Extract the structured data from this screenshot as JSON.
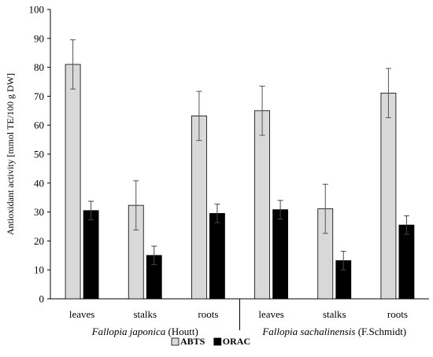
{
  "chart_data": {
    "type": "bar",
    "categories": [
      "leaves",
      "stalks",
      "roots",
      "leaves",
      "stalks",
      "roots"
    ],
    "groups": [
      {
        "name_italic": "Fallopia japonica",
        "name_author": "(Houtt)"
      },
      {
        "name_italic": "Fallopia sachalinensis",
        "name_author": "(F.Schmidt)"
      }
    ],
    "series": [
      {
        "name": "ABTS",
        "values": [
          81.0,
          32.3,
          63.2,
          65.0,
          31.1,
          71.1
        ],
        "errors": [
          8.5,
          8.5,
          8.5,
          8.5,
          8.5,
          8.5
        ],
        "color": "#d9d9d9"
      },
      {
        "name": "ORAC",
        "values": [
          30.5,
          15.0,
          29.5,
          30.8,
          13.2,
          25.5
        ],
        "errors": [
          3.2,
          3.2,
          3.2,
          3.2,
          3.2,
          3.2
        ],
        "color": "#000000"
      }
    ],
    "ylabel": "Antioxidant activity [mmol TE/100 g DW]",
    "ylim": [
      0,
      100
    ],
    "yticks": [
      0,
      10,
      20,
      30,
      40,
      50,
      60,
      70,
      80,
      90,
      100
    ],
    "grid": false,
    "legend_position": "bottom"
  }
}
